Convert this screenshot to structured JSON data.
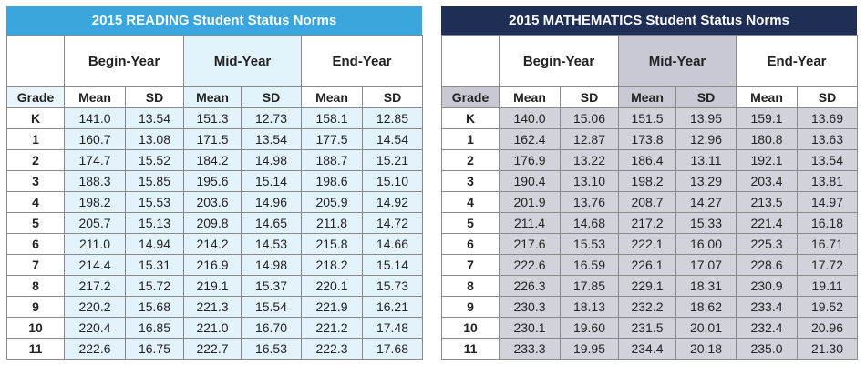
{
  "reading": {
    "title": "2015 READING Student Status Norms",
    "periods": [
      "Begin-Year",
      "Mid-Year",
      "End-Year"
    ],
    "columns": [
      "Grade",
      "Mean",
      "SD",
      "Mean",
      "SD",
      "Mean",
      "SD"
    ],
    "rows": [
      [
        "K",
        "141.0",
        "13.54",
        "151.3",
        "12.73",
        "158.1",
        "12.85"
      ],
      [
        "1",
        "160.7",
        "13.08",
        "171.5",
        "13.54",
        "177.5",
        "14.54"
      ],
      [
        "2",
        "174.7",
        "15.52",
        "184.2",
        "14.98",
        "188.7",
        "15.21"
      ],
      [
        "3",
        "188.3",
        "15.85",
        "195.6",
        "15.14",
        "198.6",
        "15.10"
      ],
      [
        "4",
        "198.2",
        "15.53",
        "203.6",
        "14.96",
        "205.9",
        "14.92"
      ],
      [
        "5",
        "205.7",
        "15.13",
        "209.8",
        "14.65",
        "211.8",
        "14.72"
      ],
      [
        "6",
        "211.0",
        "14.94",
        "214.2",
        "14.53",
        "215.8",
        "14.66"
      ],
      [
        "7",
        "214.4",
        "15.31",
        "216.9",
        "14.98",
        "218.2",
        "15.14"
      ],
      [
        "8",
        "217.2",
        "15.72",
        "219.1",
        "15.37",
        "220.1",
        "15.73"
      ],
      [
        "9",
        "220.2",
        "15.68",
        "221.3",
        "15.54",
        "221.9",
        "16.21"
      ],
      [
        "10",
        "220.4",
        "16.85",
        "221.0",
        "16.70",
        "221.2",
        "17.48"
      ],
      [
        "11",
        "222.6",
        "16.75",
        "222.7",
        "16.53",
        "222.3",
        "17.68"
      ]
    ]
  },
  "math": {
    "title": "2015 MATHEMATICS Student Status Norms",
    "periods": [
      "Begin-Year",
      "Mid-Year",
      "End-Year"
    ],
    "columns": [
      "Grade",
      "Mean",
      "SD",
      "Mean",
      "SD",
      "Mean",
      "SD"
    ],
    "rows": [
      [
        "K",
        "140.0",
        "15.06",
        "151.5",
        "13.95",
        "159.1",
        "13.69"
      ],
      [
        "1",
        "162.4",
        "12.87",
        "173.8",
        "12.96",
        "180.8",
        "13.63"
      ],
      [
        "2",
        "176.9",
        "13.22",
        "186.4",
        "13.11",
        "192.1",
        "13.54"
      ],
      [
        "3",
        "190.4",
        "13.10",
        "198.2",
        "13.29",
        "203.4",
        "13.81"
      ],
      [
        "4",
        "201.9",
        "13.76",
        "208.7",
        "14.27",
        "213.5",
        "14.97"
      ],
      [
        "5",
        "211.4",
        "14.68",
        "217.2",
        "15.33",
        "221.4",
        "16.18"
      ],
      [
        "6",
        "217.6",
        "15.53",
        "222.1",
        "16.00",
        "225.3",
        "16.71"
      ],
      [
        "7",
        "222.6",
        "16.59",
        "226.1",
        "17.07",
        "228.6",
        "17.72"
      ],
      [
        "8",
        "226.3",
        "17.85",
        "229.1",
        "18.31",
        "230.9",
        "19.11"
      ],
      [
        "9",
        "230.3",
        "18.13",
        "232.2",
        "18.62",
        "233.4",
        "19.52"
      ],
      [
        "10",
        "230.1",
        "19.60",
        "231.5",
        "20.01",
        "232.4",
        "20.96"
      ],
      [
        "11",
        "233.3",
        "19.95",
        "234.4",
        "20.18",
        "235.0",
        "21.30"
      ]
    ]
  },
  "colors": {
    "reading_banner": "#3aa6dd",
    "math_banner": "#1f2e55",
    "reading_shade": "#e3f3fb",
    "math_shade": "#d2d2da"
  }
}
